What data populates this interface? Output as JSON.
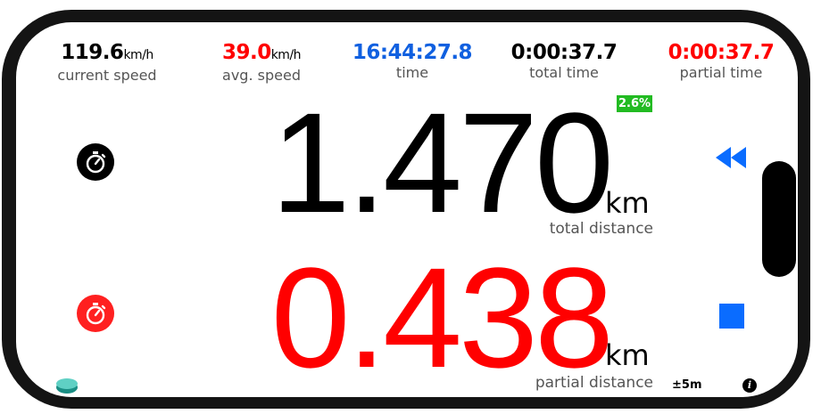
{
  "stats": {
    "current_speed": {
      "value": "119.6",
      "unit": "km/h",
      "label": "current speed",
      "color": "#000000"
    },
    "avg_speed": {
      "value": "39.0",
      "unit": "km/h",
      "label": "avg. speed",
      "color": "#ff0000"
    },
    "time": {
      "value": "16:44:27.8",
      "label": "time",
      "color": "#1060e0"
    },
    "total_time": {
      "value": "0:00:37.7",
      "label": "total time",
      "color": "#000000"
    },
    "partial_time": {
      "value": "0:00:37.7",
      "label": "partial time",
      "color": "#ff0000"
    }
  },
  "total_distance": {
    "value": "1.470",
    "unit": "km",
    "label": "total distance",
    "grade": "2.6%"
  },
  "partial_distance": {
    "value": "0.438",
    "unit": "km",
    "label": "partial distance"
  },
  "accuracy": "±5m",
  "icons": {
    "total": "stopwatch-icon",
    "partial": "stopwatch-icon",
    "rewind": "rewind-icon",
    "stop": "stop-icon",
    "info": "info-icon"
  },
  "colors": {
    "accent_blue": "#0a6cff",
    "red": "#ff0000",
    "grade_green": "#22bb22"
  }
}
